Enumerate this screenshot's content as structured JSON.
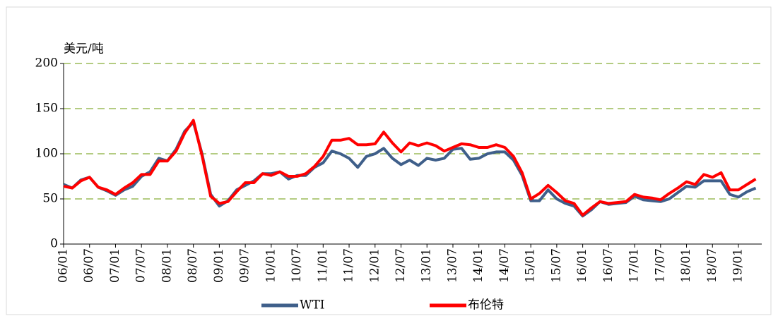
{
  "chart_data": {
    "type": "line",
    "y_label": "美元/吨",
    "categories": [
      "06/01",
      null,
      null,
      "06/07",
      null,
      null,
      "07/01",
      null,
      null,
      "07/07",
      null,
      null,
      "08/01",
      null,
      null,
      "08/07",
      null,
      null,
      "09/01",
      null,
      null,
      "09/07",
      null,
      null,
      "10/01",
      null,
      null,
      "10/07",
      null,
      null,
      "11/01",
      null,
      null,
      "11/07",
      null,
      null,
      "12/01",
      null,
      null,
      "12/07",
      null,
      null,
      "13/01",
      null,
      null,
      "13/07",
      null,
      null,
      "14/01",
      null,
      null,
      "14/07",
      null,
      null,
      "15/01",
      null,
      null,
      "15/07",
      null,
      null,
      "16/01",
      null,
      null,
      "16/07",
      null,
      null,
      "17/01",
      null,
      null,
      "17/07",
      null,
      null,
      "18/01",
      null,
      null,
      "18/07",
      null,
      null,
      "19/01",
      null,
      null
    ],
    "series": [
      {
        "name": "WTI",
        "color": "#3f5f8a",
        "values": [
          66,
          62,
          71,
          74,
          63,
          59,
          54,
          60,
          64,
          75,
          80,
          95,
          92,
          105,
          125,
          135,
          100,
          55,
          42,
          48,
          60,
          65,
          70,
          78,
          78,
          80,
          72,
          76,
          76,
          85,
          90,
          103,
          100,
          95,
          85,
          97,
          100,
          106,
          95,
          88,
          93,
          87,
          95,
          93,
          95,
          105,
          106,
          94,
          95,
          100,
          102,
          102,
          93,
          76,
          48,
          48,
          60,
          50,
          45,
          42,
          31,
          38,
          47,
          44,
          45,
          46,
          53,
          49,
          48,
          47,
          50,
          57,
          64,
          63,
          70,
          70,
          70,
          55,
          52,
          58,
          62
        ]
      },
      {
        "name": "布伦特",
        "color": "#ff0000",
        "values": [
          64,
          62,
          70,
          74,
          63,
          60,
          55,
          62,
          68,
          77,
          77,
          92,
          92,
          103,
          123,
          137,
          98,
          53,
          45,
          47,
          58,
          68,
          68,
          78,
          76,
          80,
          75,
          75,
          78,
          86,
          97,
          115,
          115,
          117,
          110,
          110,
          111,
          124,
          112,
          102,
          112,
          109,
          112,
          109,
          103,
          107,
          111,
          110,
          107,
          107,
          110,
          107,
          97,
          79,
          50,
          56,
          65,
          57,
          48,
          45,
          32,
          40,
          47,
          45,
          46,
          47,
          55,
          52,
          51,
          49,
          56,
          62,
          69,
          66,
          77,
          74,
          79,
          60,
          60,
          66,
          72
        ]
      }
    ],
    "ylim": [
      0,
      200
    ],
    "yticks": [
      0,
      50,
      100,
      150,
      200
    ],
    "grid": true
  }
}
